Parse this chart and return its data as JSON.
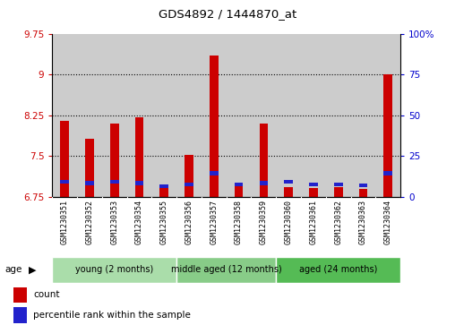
{
  "title": "GDS4892 / 1444870_at",
  "samples": [
    "GSM1230351",
    "GSM1230352",
    "GSM1230353",
    "GSM1230354",
    "GSM1230355",
    "GSM1230356",
    "GSM1230357",
    "GSM1230358",
    "GSM1230359",
    "GSM1230360",
    "GSM1230361",
    "GSM1230362",
    "GSM1230363",
    "GSM1230364"
  ],
  "count_values": [
    8.15,
    7.82,
    8.1,
    8.22,
    6.92,
    7.52,
    9.35,
    6.95,
    8.1,
    6.93,
    6.91,
    6.92,
    6.9,
    9.0
  ],
  "percentile_values": [
    7.02,
    7.0,
    7.02,
    7.0,
    6.94,
    6.98,
    7.18,
    6.97,
    7.0,
    7.02,
    6.97,
    6.97,
    6.96,
    7.18
  ],
  "count_color": "#cc0000",
  "percentile_color": "#2222cc",
  "y_min": 6.75,
  "y_max": 9.75,
  "y_ticks": [
    6.75,
    7.5,
    8.25,
    9.0,
    9.75
  ],
  "y_tick_labels": [
    "6.75",
    "7.5",
    "8.25",
    "9",
    "9.75"
  ],
  "y2_ticks": [
    0,
    25,
    50,
    75,
    100
  ],
  "y2_tick_labels": [
    "0",
    "25",
    "50",
    "75",
    "100%"
  ],
  "groups": [
    {
      "label": "young (2 months)",
      "start": 0,
      "end": 4,
      "color": "#aaddaa"
    },
    {
      "label": "middle aged (12 months)",
      "start": 5,
      "end": 8,
      "color": "#88cc88"
    },
    {
      "label": "aged (24 months)",
      "start": 9,
      "end": 13,
      "color": "#55bb55"
    }
  ],
  "age_label": "age",
  "legend_count_label": "count",
  "legend_percentile_label": "percentile rank within the sample",
  "bar_width": 0.35,
  "tick_color_left": "#cc0000",
  "tick_color_right": "#0000cc",
  "grid_color": "#000000",
  "bar_area_bg": "#cccccc"
}
